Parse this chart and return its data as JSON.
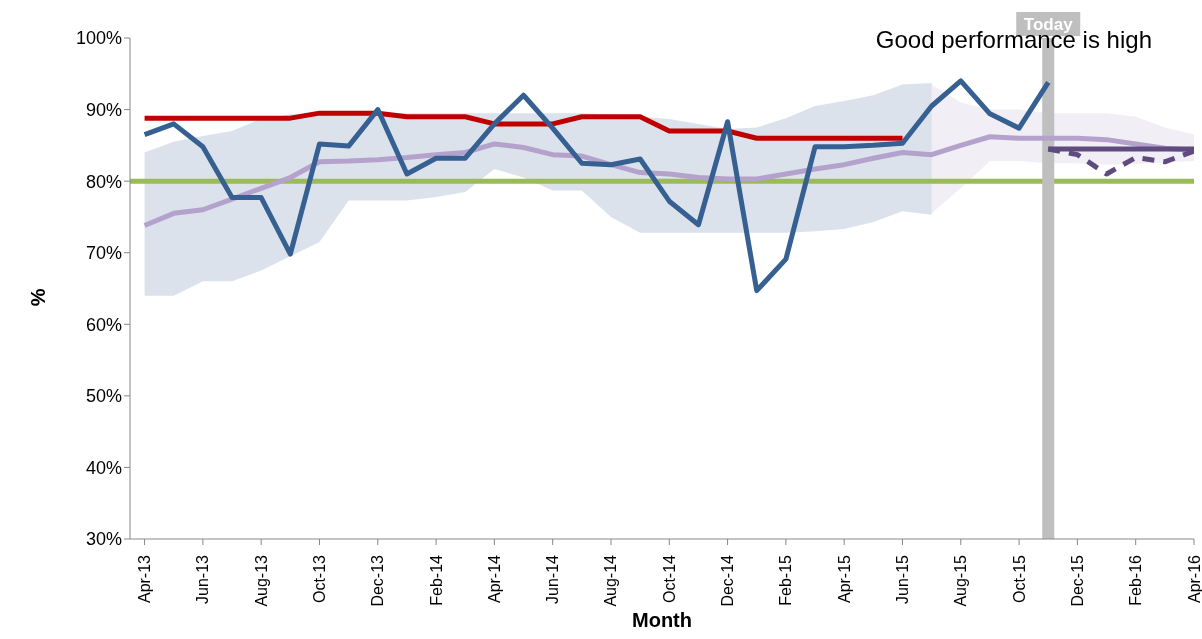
{
  "chart_data": {
    "type": "line",
    "xlabel": "Month",
    "ylabel": "%",
    "annotations": [
      "Good performance is high"
    ],
    "x": [
      "2013-04",
      "2013-05",
      "2013-06",
      "2013-07",
      "2013-08",
      "2013-09",
      "2013-10",
      "2013-11",
      "2013-12",
      "2014-01",
      "2014-02",
      "2014-03",
      "2014-04",
      "2014-05",
      "2014-06",
      "2014-07",
      "2014-08",
      "2014-09",
      "2014-10",
      "2014-11",
      "2014-12",
      "2015-01",
      "2015-02",
      "2015-03",
      "2015-04",
      "2015-05",
      "2015-06",
      "2015-07",
      "2015-08",
      "2015-09",
      "2015-10",
      "2015-11",
      "2015-12",
      "2016-01",
      "2016-02",
      "2016-03",
      "2016-04"
    ],
    "xlim": [
      "2013-03-16",
      "2016-04"
    ],
    "xticks": [
      {
        "value": "2013-04",
        "label": "Apr-13"
      },
      {
        "value": "2013-06",
        "label": "Jun-13"
      },
      {
        "value": "2013-08",
        "label": "Aug-13"
      },
      {
        "value": "2013-10",
        "label": "Oct-13"
      },
      {
        "value": "2013-12",
        "label": "Dec-13"
      },
      {
        "value": "2014-02",
        "label": "Feb-14"
      },
      {
        "value": "2014-04",
        "label": "Apr-14"
      },
      {
        "value": "2014-06",
        "label": "Jun-14"
      },
      {
        "value": "2014-08",
        "label": "Aug-14"
      },
      {
        "value": "2014-10",
        "label": "Oct-14"
      },
      {
        "value": "2014-12",
        "label": "Dec-14"
      },
      {
        "value": "2015-02",
        "label": "Feb-15"
      },
      {
        "value": "2015-04",
        "label": "Apr-15"
      },
      {
        "value": "2015-06",
        "label": "Jun-15"
      },
      {
        "value": "2015-08",
        "label": "Aug-15"
      },
      {
        "value": "2015-10",
        "label": "Oct-15"
      },
      {
        "value": "2015-12",
        "label": "Dec-15"
      },
      {
        "value": "2016-02",
        "label": "Feb-16"
      },
      {
        "value": "2016-04",
        "label": "Apr-16"
      }
    ],
    "ylim": [
      30,
      100
    ],
    "yticks": [
      {
        "value": 30,
        "label": "30%"
      },
      {
        "value": 40,
        "label": "40%"
      },
      {
        "value": 50,
        "label": "50%"
      },
      {
        "value": 60,
        "label": "60%"
      },
      {
        "value": 70,
        "label": "70%"
      },
      {
        "value": 80,
        "label": "80%"
      },
      {
        "value": 90,
        "label": "90%"
      },
      {
        "value": 100,
        "label": "100%"
      }
    ],
    "grid": false,
    "legend": false,
    "marker": "none",
    "ref_lines": [
      {
        "axis": "y",
        "value": 80,
        "color": "#9bbb59"
      },
      {
        "axis": "x",
        "value": "2015-11",
        "label": "Today",
        "color": "#bfbfbf"
      }
    ],
    "series": [
      {
        "color": "#b4a2cc",
        "values": [
          73.8,
          75.5,
          76,
          77.5,
          79,
          80.5,
          82.7,
          82.8,
          83,
          83.3,
          83.7,
          84,
          85.2,
          84.7,
          83.7,
          83.5,
          82.3,
          81.2,
          81,
          80.5,
          80.3,
          80.3,
          81,
          81.7,
          82.3,
          83.2,
          84,
          83.7,
          85,
          86.2,
          86,
          86,
          86,
          85.8,
          85.2,
          84.6,
          84.3
        ],
        "lower": [
          null,
          null,
          null,
          null,
          null,
          null,
          null,
          null,
          null,
          null,
          null,
          null,
          null,
          null,
          null,
          null,
          null,
          null,
          null,
          null,
          null,
          null,
          null,
          null,
          null,
          null,
          null,
          75.5,
          79,
          82.8,
          82.8,
          82.5,
          82.5,
          82.3,
          82.4,
          82.6,
          82.8
        ],
        "upper": [
          null,
          null,
          null,
          null,
          null,
          null,
          null,
          null,
          null,
          null,
          null,
          null,
          null,
          null,
          null,
          null,
          null,
          null,
          null,
          null,
          null,
          null,
          null,
          null,
          null,
          null,
          null,
          93.5,
          91,
          90,
          90,
          89.5,
          89.5,
          89.5,
          89,
          87.5,
          86.5
        ]
      },
      {
        "color": "#c00000",
        "values": [
          88.8,
          88.8,
          88.8,
          88.8,
          88.8,
          88.8,
          89.5,
          89.5,
          89.5,
          89,
          89,
          89,
          88,
          88,
          88,
          89,
          89,
          89,
          87,
          87,
          87,
          86,
          86,
          86,
          86,
          86,
          86,
          null,
          null,
          null,
          null,
          null,
          null,
          null,
          null,
          null,
          null
        ]
      },
      {
        "color": "#376092",
        "values": [
          86.5,
          88,
          84.8,
          77.7,
          77.7,
          69.8,
          85.2,
          84.9,
          90,
          81,
          83.2,
          83.2,
          88,
          92,
          87.4,
          82.5,
          82.3,
          83.1,
          77.2,
          73.9,
          88.3,
          64.7,
          69.1,
          84.8,
          84.8,
          85,
          85.3,
          90.5,
          94,
          89.4,
          87.4,
          93.8,
          null,
          null,
          null,
          null,
          null
        ],
        "lower": [
          64,
          64,
          66,
          66,
          67.5,
          69.5,
          71.5,
          77.3,
          77.3,
          77.3,
          77.8,
          78.5,
          81.7,
          80.5,
          78.7,
          78.7,
          75,
          72.8,
          72.8,
          72.8,
          72.8,
          72.8,
          72.8,
          73,
          73.3,
          74.3,
          75.8,
          75.3,
          null,
          null,
          null,
          null,
          null,
          null,
          null,
          null,
          null
        ],
        "upper": [
          84,
          85.5,
          86.3,
          87,
          88.7,
          89.3,
          89.5,
          89.5,
          89.5,
          89.5,
          89.5,
          89.5,
          89.5,
          89.5,
          89.5,
          89.5,
          89.3,
          89,
          88.7,
          88,
          87.3,
          87.5,
          88.8,
          90.5,
          91.2,
          92,
          93.5,
          93.7,
          null,
          null,
          null,
          null,
          null,
          null,
          null,
          null,
          null
        ]
      },
      {
        "color": "#5f4b7f",
        "values": [
          null,
          null,
          null,
          null,
          null,
          null,
          null,
          null,
          null,
          null,
          null,
          null,
          null,
          null,
          null,
          null,
          null,
          null,
          null,
          null,
          null,
          null,
          null,
          null,
          null,
          null,
          null,
          null,
          null,
          null,
          null,
          84.5,
          84.5,
          84.5,
          84.5,
          84.5,
          84.5
        ]
      },
      {
        "color": "#5f4b7f",
        "line_style": "dashed",
        "values": [
          null,
          null,
          null,
          null,
          null,
          null,
          null,
          null,
          null,
          null,
          null,
          null,
          null,
          null,
          null,
          null,
          null,
          null,
          null,
          null,
          null,
          null,
          null,
          null,
          null,
          null,
          null,
          null,
          null,
          null,
          null,
          84.5,
          83.7,
          81,
          83.3,
          82.7,
          84.2
        ]
      }
    ]
  }
}
